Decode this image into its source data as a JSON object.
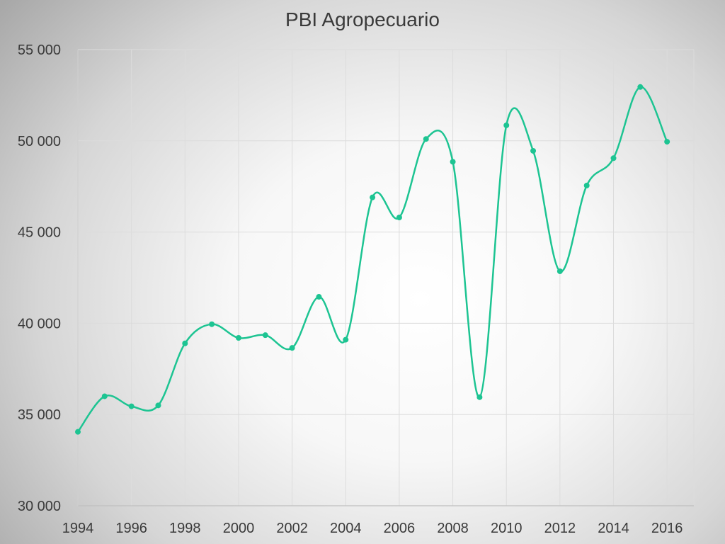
{
  "chart_data": {
    "type": "line",
    "title": "PBI Agropecuario",
    "xlabel": "",
    "ylabel": "",
    "x": [
      1994,
      1995,
      1996,
      1997,
      1998,
      1999,
      2000,
      2001,
      2002,
      2003,
      2004,
      2005,
      2006,
      2007,
      2008,
      2009,
      2010,
      2011,
      2012,
      2013,
      2014,
      2015,
      2016
    ],
    "series": [
      {
        "name": "",
        "values": [
          34050,
          36000,
          35450,
          35500,
          38900,
          39950,
          39200,
          39350,
          38650,
          41450,
          39100,
          46900,
          45800,
          50100,
          48850,
          35950,
          50850,
          49450,
          42850,
          47550,
          49050,
          52950,
          49950
        ]
      }
    ],
    "ylim": [
      30000,
      55000
    ],
    "xlim": [
      1994,
      2017
    ],
    "y_ticks": [
      "30 000",
      "35 000",
      "40 000",
      "45 000",
      "50 000",
      "55 000"
    ],
    "x_ticks": [
      "1994",
      "1996",
      "1998",
      "2000",
      "2002",
      "2004",
      "2006",
      "2008",
      "2010",
      "2012",
      "2014",
      "2016"
    ],
    "grid": true,
    "legend": "none",
    "line_color": "#1dc492",
    "grid_color": "#dcdcdc",
    "text_color": "#3a3a3a"
  }
}
